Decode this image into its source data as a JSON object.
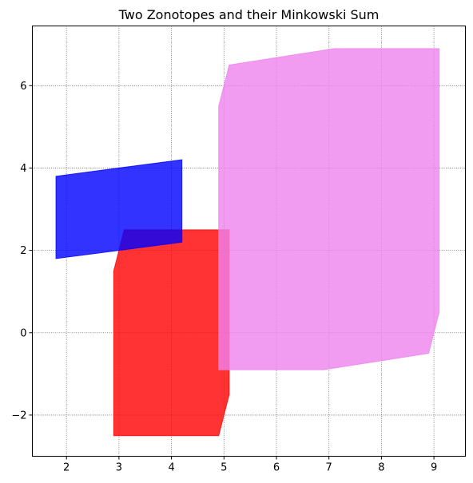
{
  "chart_data": {
    "type": "area",
    "title": "Two Zonotopes and their Minkowski Sum",
    "xlabel": "",
    "ylabel": "",
    "xlim": [
      1.35,
      9.6
    ],
    "ylim": [
      -3.0,
      7.45
    ],
    "xticks": [
      2,
      3,
      4,
      5,
      6,
      7,
      8,
      9
    ],
    "yticks": [
      -2,
      0,
      2,
      4,
      6
    ],
    "ytick_labels": [
      "−2",
      "0",
      "2",
      "4",
      "6"
    ],
    "grid": true,
    "grid_style": "dotted",
    "series": [
      {
        "color": "#ff0000",
        "alpha": 0.8,
        "points": [
          [
            2.9,
            -2.5
          ],
          [
            4.9,
            -2.5
          ],
          [
            5.1,
            -1.5
          ],
          [
            5.1,
            2.5
          ],
          [
            3.1,
            2.5
          ],
          [
            2.9,
            1.5
          ]
        ]
      },
      {
        "color": "#0000ff",
        "alpha": 0.8,
        "points": [
          [
            1.8,
            1.8
          ],
          [
            4.2,
            2.2
          ],
          [
            4.2,
            4.2
          ],
          [
            1.8,
            3.8
          ]
        ]
      },
      {
        "color": "#ee82ee",
        "alpha": 0.8,
        "points": [
          [
            4.9,
            -0.9
          ],
          [
            6.9,
            -0.9
          ],
          [
            8.9,
            -0.5
          ],
          [
            9.1,
            0.5
          ],
          [
            9.1,
            6.9
          ],
          [
            7.1,
            6.9
          ],
          [
            5.1,
            6.5
          ],
          [
            4.9,
            5.5
          ]
        ]
      }
    ]
  }
}
